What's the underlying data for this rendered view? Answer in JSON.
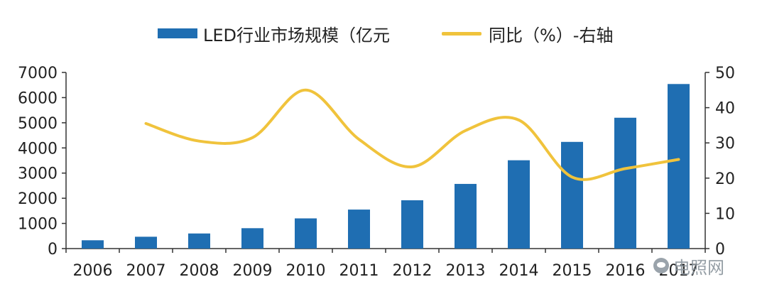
{
  "legend": {
    "bar_label": "LED行业市场规模（亿元",
    "line_label": "同比（%）-右轴"
  },
  "watermark": {
    "text": "电照网"
  },
  "colors": {
    "bar": "#1f6eb2",
    "line": "#f0c33c",
    "axis": "#333333"
  },
  "chart_data": {
    "type": "bar",
    "categories": [
      "2006",
      "2007",
      "2008",
      "2009",
      "2010",
      "2011",
      "2012",
      "2013",
      "2014",
      "2015",
      "2016",
      "2017"
    ],
    "tick_labels": [
      "2006",
      "2007",
      "2008",
      "2009",
      "2010",
      "2011",
      "2012",
      "2013",
      "2014",
      "2015",
      "2016",
      "2017"
    ],
    "series": [
      {
        "name": "LED行业市场规模（亿元",
        "type": "bar",
        "axis": "left",
        "values": [
          330,
          470,
          600,
          810,
          1200,
          1550,
          1920,
          2570,
          3510,
          4240,
          5200,
          6540
        ]
      },
      {
        "name": "同比（%）-右轴",
        "type": "line",
        "axis": "right",
        "values": [
          null,
          35.5,
          30.5,
          31.5,
          45,
          31,
          23.2,
          33.5,
          36.5,
          20.3,
          22.7,
          25.3
        ]
      }
    ],
    "y_left": {
      "min": 0,
      "max": 7000,
      "ticks": [
        0,
        1000,
        2000,
        3000,
        4000,
        5000,
        6000,
        7000
      ]
    },
    "y_right": {
      "min": 0,
      "max": 50,
      "ticks": [
        0,
        10,
        20,
        30,
        40,
        50
      ]
    },
    "xlabel": "",
    "ylabel": "",
    "grid": false,
    "legend_position": "top"
  }
}
